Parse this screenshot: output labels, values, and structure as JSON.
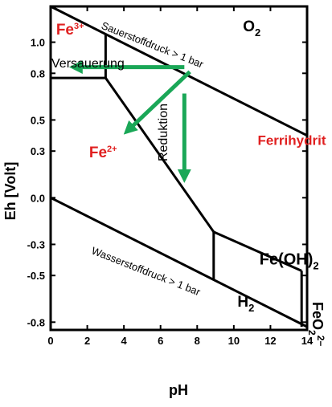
{
  "chart_data": {
    "type": "line",
    "title": "",
    "xlabel": "pH",
    "ylabel": "Eh [Volt]",
    "xlim": [
      0,
      14
    ],
    "ylim": [
      -0.85,
      1.23
    ],
    "xticks": [
      "0",
      "2",
      "4",
      "6",
      "8",
      "10",
      "12",
      "14"
    ],
    "yticks": [
      "1.0",
      "0.8",
      "0.5",
      "0.3",
      "0.0",
      "-0.3",
      "-0.5",
      "-0.8"
    ],
    "ytick_values": [
      1.0,
      0.8,
      0.5,
      0.3,
      0.0,
      -0.3,
      -0.5,
      -0.8
    ],
    "boundaries": [
      {
        "name": "Sauerstoffdruck > 1 bar",
        "points": [
          [
            0,
            1.23
          ],
          [
            14,
            0.4
          ]
        ]
      },
      {
        "name": "Wasserstoffdruck > 1 bar",
        "points": [
          [
            0,
            0.0
          ],
          [
            14,
            -0.83
          ]
        ]
      },
      {
        "name": "Fe3+/Fe2+",
        "points": [
          [
            0,
            0.77
          ],
          [
            3,
            0.77
          ]
        ]
      },
      {
        "name": "Fe3+/Ferrihydrit",
        "points": [
          [
            3,
            0.77
          ],
          [
            3,
            1.05
          ]
        ]
      },
      {
        "name": "Fe2+/Ferrihydrit",
        "points": [
          [
            3,
            0.77
          ],
          [
            8.9,
            -0.22
          ]
        ]
      },
      {
        "name": "Fe2+/Fe(OH)2",
        "points": [
          [
            8.9,
            -0.22
          ],
          [
            8.9,
            -0.53
          ]
        ]
      },
      {
        "name": "Fe(OH)2/Ferrihydrit",
        "points": [
          [
            8.9,
            -0.22
          ],
          [
            13.7,
            -0.47
          ]
        ]
      },
      {
        "name": "FeO2/Fe(OH)2",
        "points": [
          [
            13.7,
            -0.47
          ],
          [
            13.7,
            -0.83
          ]
        ]
      }
    ],
    "regions": [
      {
        "label": "Fe",
        "sup": "3+",
        "color": "#e02020",
        "x": 0.3,
        "y": 1.05
      },
      {
        "label": "O",
        "sub": "2",
        "color": "#000000",
        "x": 10.5,
        "y": 1.07
      },
      {
        "label": "Fe",
        "sup": "2+",
        "color": "#e02020",
        "x": 2.1,
        "y": 0.26
      },
      {
        "label": "Ferrihydrit",
        "color": "#e02020",
        "x": 11.3,
        "y": 0.34
      },
      {
        "label": "Fe(OH)",
        "sub": "2",
        "color": "#000000",
        "x": 11.4,
        "y": -0.43
      },
      {
        "label": "H",
        "sub": "2",
        "color": "#000000",
        "x": 10.2,
        "y": -0.7
      }
    ],
    "feo2_label": {
      "base": "FeO",
      "sub": "2",
      "sup": "2−"
    },
    "annotations": [
      {
        "text": "Versauerung",
        "type": "acidification"
      },
      {
        "text": "Reduktion",
        "type": "reduction"
      }
    ],
    "arrows_color": "#1aa757",
    "arrows": [
      {
        "name": "versauerung",
        "from": [
          7.3,
          0.84
        ],
        "to": [
          1.3,
          0.84
        ]
      },
      {
        "name": "diagonal",
        "from": [
          7.6,
          0.81
        ],
        "to": [
          4.2,
          0.43
        ]
      },
      {
        "name": "reduktion",
        "from": [
          7.3,
          0.67
        ],
        "to": [
          7.3,
          0.13
        ]
      }
    ]
  }
}
